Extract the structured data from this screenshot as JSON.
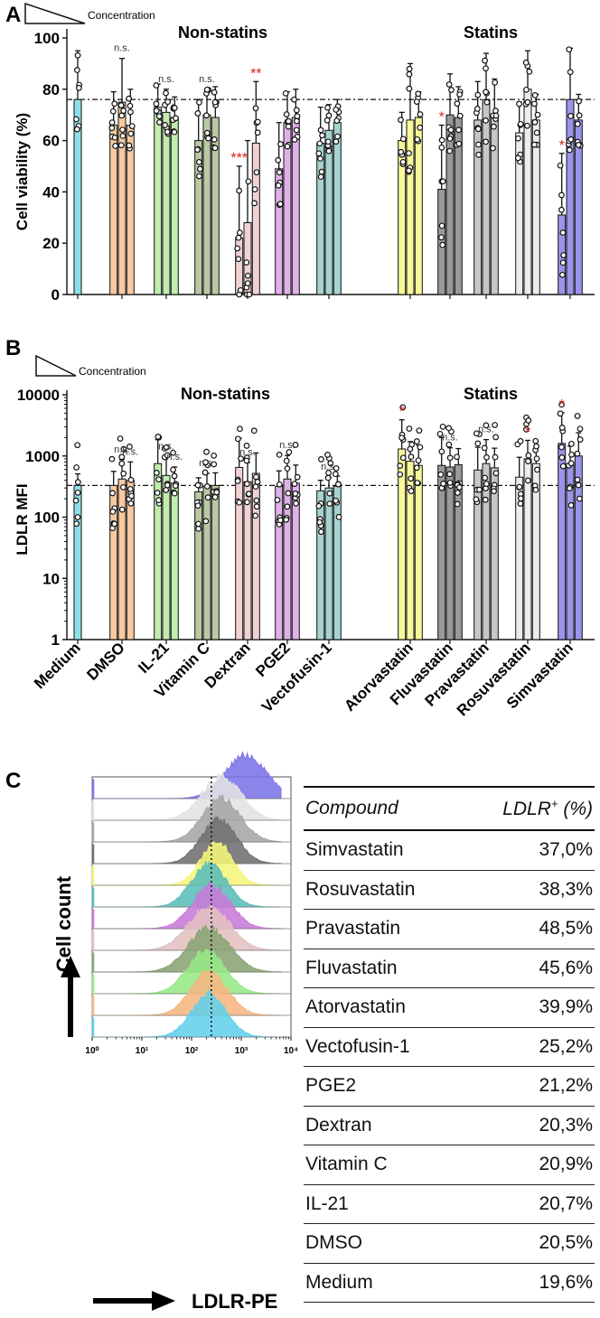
{
  "panel_labels": {
    "a": "A",
    "b": "B",
    "c": "C"
  },
  "concentration_label": "Concentration",
  "group_titles": {
    "non_statins": "Non-statins",
    "statins": "Statins"
  },
  "significance": {
    "ns": "n.s.",
    "one": "*",
    "two": "**",
    "three": "***"
  },
  "colors": {
    "Medium": "#8fdfe8",
    "DMSO": "#f8c9a0",
    "IL-21": "#c2ecae",
    "Vitamin C": "#b9c9a4",
    "Dextran": "#f1d2d2",
    "PGE2": "#dfb1e8",
    "Vectofusin-1": "#a5d4d0",
    "Atorvastatin": "#f8f89a",
    "Fluvastatin": "#999999",
    "Pravastatin": "#c7c7c7",
    "Rosuvastatin": "#ececec",
    "Simvastatin": "#9b94ea",
    "accent_red": "#d81e1e"
  },
  "chart_data": [
    {
      "type": "bar",
      "id": "A",
      "title": "",
      "ylabel": "Cell viability (%)",
      "xlabel": "",
      "ylim": [
        0,
        100
      ],
      "yticks": [
        0,
        20,
        40,
        60,
        80,
        100
      ],
      "reference_line": 76,
      "bars": [
        {
          "group": "Medium",
          "value": 76,
          "err": 19,
          "sig": ""
        },
        {
          "group": "DMSO",
          "value": 66,
          "err": 13,
          "sig": ""
        },
        {
          "group": "DMSO",
          "value": 75,
          "err": 17,
          "sig": "n.s."
        },
        {
          "group": "DMSO",
          "value": 66,
          "err": 14,
          "sig": ""
        },
        {
          "group": "IL-21",
          "value": 73,
          "err": 9,
          "sig": ""
        },
        {
          "group": "IL-21",
          "value": 71,
          "err": 9,
          "sig": "n.s."
        },
        {
          "group": "IL-21",
          "value": 69,
          "err": 8,
          "sig": ""
        },
        {
          "group": "Vitamin C",
          "value": 60,
          "err": 16,
          "sig": ""
        },
        {
          "group": "Vitamin C",
          "value": 70,
          "err": 10,
          "sig": "n.s."
        },
        {
          "group": "Vitamin C",
          "value": 69,
          "err": 12,
          "sig": ""
        },
        {
          "group": "Dextran",
          "value": 22,
          "err": 28,
          "sig": "***"
        },
        {
          "group": "Dextran",
          "value": 28,
          "err": 32,
          "sig": ""
        },
        {
          "group": "Dextran",
          "value": 59,
          "err": 24,
          "sig": "**"
        },
        {
          "group": "PGE2",
          "value": 49,
          "err": 18,
          "sig": ""
        },
        {
          "group": "PGE2",
          "value": 67,
          "err": 12,
          "sig": ""
        },
        {
          "group": "PGE2",
          "value": 69,
          "err": 11,
          "sig": ""
        },
        {
          "group": "Vectofusin-1",
          "value": 59,
          "err": 14,
          "sig": ""
        },
        {
          "group": "Vectofusin-1",
          "value": 64,
          "err": 10,
          "sig": ""
        },
        {
          "group": "Vectofusin-1",
          "value": 67,
          "err": 9,
          "sig": ""
        },
        {
          "group": "Atorvastatin",
          "value": 60,
          "err": 11,
          "sig": ""
        },
        {
          "group": "Atorvastatin",
          "value": 68,
          "err": 22,
          "sig": ""
        },
        {
          "group": "Atorvastatin",
          "value": 69,
          "err": 10,
          "sig": ""
        },
        {
          "group": "Fluvastatin",
          "value": 41,
          "err": 25,
          "sig": "*"
        },
        {
          "group": "Fluvastatin",
          "value": 70,
          "err": 16,
          "sig": ""
        },
        {
          "group": "Fluvastatin",
          "value": 69,
          "err": 12,
          "sig": ""
        },
        {
          "group": "Pravastatin",
          "value": 68,
          "err": 15,
          "sig": ""
        },
        {
          "group": "Pravastatin",
          "value": 76,
          "err": 18,
          "sig": ""
        },
        {
          "group": "Pravastatin",
          "value": 70,
          "err": 14,
          "sig": ""
        },
        {
          "group": "Rosuvastatin",
          "value": 63,
          "err": 12,
          "sig": ""
        },
        {
          "group": "Rosuvastatin",
          "value": 80,
          "err": 15,
          "sig": ""
        },
        {
          "group": "Rosuvastatin",
          "value": 68,
          "err": 10,
          "sig": ""
        },
        {
          "group": "Simvastatin",
          "value": 31,
          "err": 24,
          "sig": "*"
        },
        {
          "group": "Simvastatin",
          "value": 76,
          "err": 20,
          "sig": ""
        },
        {
          "group": "Simvastatin",
          "value": 68,
          "err": 10,
          "sig": ""
        }
      ]
    },
    {
      "type": "bar",
      "id": "B",
      "title": "",
      "ylabel": "LDLR MFI",
      "xlabel": "",
      "yscale": "log",
      "ylim": [
        1,
        10000
      ],
      "yticks": [
        1,
        10,
        100,
        1000,
        10000
      ],
      "reference_line": 330,
      "bars": [
        {
          "group": "Medium",
          "value": 330,
          "err": 180,
          "sig": ""
        },
        {
          "group": "DMSO",
          "value": 330,
          "err": 230,
          "sig": ""
        },
        {
          "group": "DMSO",
          "value": 420,
          "err": 450,
          "sig": "n.s."
        },
        {
          "group": "DMSO",
          "value": 400,
          "err": 400,
          "sig": "n.s."
        },
        {
          "group": "IL-21",
          "value": 750,
          "err": 1100,
          "sig": ""
        },
        {
          "group": "IL-21",
          "value": 480,
          "err": 500,
          "sig": "n.s."
        },
        {
          "group": "IL-21",
          "value": 360,
          "err": 300,
          "sig": "n.s."
        },
        {
          "group": "Vitamin C",
          "value": 260,
          "err": 180,
          "sig": ""
        },
        {
          "group": "Vitamin C",
          "value": 320,
          "err": 200,
          "sig": "n.s."
        },
        {
          "group": "Vitamin C",
          "value": 330,
          "err": 200,
          "sig": ""
        },
        {
          "group": "Dextran",
          "value": 650,
          "err": 1300,
          "sig": ""
        },
        {
          "group": "Dextran",
          "value": 380,
          "err": 400,
          "sig": "n.s."
        },
        {
          "group": "Dextran",
          "value": 520,
          "err": 600,
          "sig": ""
        },
        {
          "group": "PGE2",
          "value": 320,
          "err": 250,
          "sig": ""
        },
        {
          "group": "PGE2",
          "value": 420,
          "err": 600,
          "sig": "n.s."
        },
        {
          "group": "PGE2",
          "value": 360,
          "err": 350,
          "sig": ""
        },
        {
          "group": "Vectofusin-1",
          "value": 270,
          "err": 130,
          "sig": ""
        },
        {
          "group": "Vectofusin-1",
          "value": 300,
          "err": 150,
          "sig": "n.s."
        },
        {
          "group": "Vectofusin-1",
          "value": 320,
          "err": 150,
          "sig": ""
        },
        {
          "group": "Atorvastatin",
          "value": 1300,
          "err": 2600,
          "sig": "*"
        },
        {
          "group": "Atorvastatin",
          "value": 820,
          "err": 900,
          "sig": ""
        },
        {
          "group": "Atorvastatin",
          "value": 700,
          "err": 800,
          "sig": ""
        },
        {
          "group": "Fluvastatin",
          "value": 700,
          "err": 1300,
          "sig": ""
        },
        {
          "group": "Fluvastatin",
          "value": 660,
          "err": 700,
          "sig": "n.s."
        },
        {
          "group": "Fluvastatin",
          "value": 720,
          "err": 600,
          "sig": ""
        },
        {
          "group": "Pravastatin",
          "value": 590,
          "err": 800,
          "sig": ""
        },
        {
          "group": "Pravastatin",
          "value": 750,
          "err": 1100,
          "sig": "n.s."
        },
        {
          "group": "Pravastatin",
          "value": 640,
          "err": 700,
          "sig": ""
        },
        {
          "group": "Rosuvastatin",
          "value": 450,
          "err": 500,
          "sig": ""
        },
        {
          "group": "Rosuvastatin",
          "value": 900,
          "err": 900,
          "sig": "*"
        },
        {
          "group": "Rosuvastatin",
          "value": 750,
          "err": 700,
          "sig": ""
        },
        {
          "group": "Simvastatin",
          "value": 1600,
          "err": 3500,
          "sig": "*"
        },
        {
          "group": "Simvastatin",
          "value": 750,
          "err": 700,
          "sig": ""
        },
        {
          "group": "Simvastatin",
          "value": 1000,
          "err": 1400,
          "sig": ""
        }
      ],
      "category_labels": [
        "Medium",
        "DMSO",
        "IL-21",
        "Vitamin C",
        "Dextran",
        "PGE2",
        "Vectofusin-1",
        "Atorvastatin",
        "Fluvastatin",
        "Pravastatin",
        "Rosuvastatin",
        "Simvastatin"
      ]
    },
    {
      "type": "area",
      "id": "C",
      "title": "",
      "xlabel": "LDLR-PE",
      "ylabel": "Cell count",
      "xscale": "log",
      "xlim": [
        1,
        10000
      ],
      "xticks": [
        "10⁰",
        "10¹",
        "10²",
        "10³",
        "10⁴"
      ],
      "marker_x": 250,
      "histograms": [
        {
          "name": "Simvastatin",
          "color": "#7b74e6",
          "peak": 3.1,
          "width": 0.42
        },
        {
          "name": "Rosuvastatin",
          "color": "#e3e3e3",
          "peak": 2.6,
          "width": 0.4
        },
        {
          "name": "Pravastatin",
          "color": "#a6a6a6",
          "peak": 2.6,
          "width": 0.38
        },
        {
          "name": "Fluvastatin",
          "color": "#707070",
          "peak": 2.55,
          "width": 0.36
        },
        {
          "name": "Atorvastatin",
          "color": "#f5f57a",
          "peak": 2.5,
          "width": 0.32
        },
        {
          "name": "Vectofusin-1",
          "color": "#5bbdb8",
          "peak": 2.35,
          "width": 0.35
        },
        {
          "name": "PGE2",
          "color": "#c77ad8",
          "peak": 2.4,
          "width": 0.38
        },
        {
          "name": "Dextran",
          "color": "#e2c0c0",
          "peak": 2.35,
          "width": 0.42
        },
        {
          "name": "Vitamin C",
          "color": "#8aa474",
          "peak": 2.35,
          "width": 0.42
        },
        {
          "name": "IL-21",
          "color": "#96e886",
          "peak": 2.3,
          "width": 0.38
        },
        {
          "name": "DMSO",
          "color": "#f6b680",
          "peak": 2.35,
          "width": 0.37
        },
        {
          "name": "Medium",
          "color": "#62d0ea",
          "peak": 2.35,
          "width": 0.35
        }
      ],
      "table": {
        "header": {
          "compound": "Compound",
          "ldlr": "LDLR",
          "ldlr_sup": "+",
          "ldlr_unit": " (%)"
        },
        "rows": [
          {
            "compound": "Simvastatin",
            "pct": "37,0%"
          },
          {
            "compound": "Rosuvastatin",
            "pct": "38,3%"
          },
          {
            "compound": "Pravastatin",
            "pct": "48,5%"
          },
          {
            "compound": "Fluvastatin",
            "pct": "45,6%"
          },
          {
            "compound": "Atorvastatin",
            "pct": "39,9%"
          },
          {
            "compound": "Vectofusin-1",
            "pct": "25,2%"
          },
          {
            "compound": "PGE2",
            "pct": "21,2%"
          },
          {
            "compound": "Dextran",
            "pct": "20,3%"
          },
          {
            "compound": "Vitamin C",
            "pct": "20,9%"
          },
          {
            "compound": "IL-21",
            "pct": "20,7%"
          },
          {
            "compound": "DMSO",
            "pct": "20,5%"
          },
          {
            "compound": "Medium",
            "pct": "19,6%"
          }
        ]
      }
    }
  ]
}
